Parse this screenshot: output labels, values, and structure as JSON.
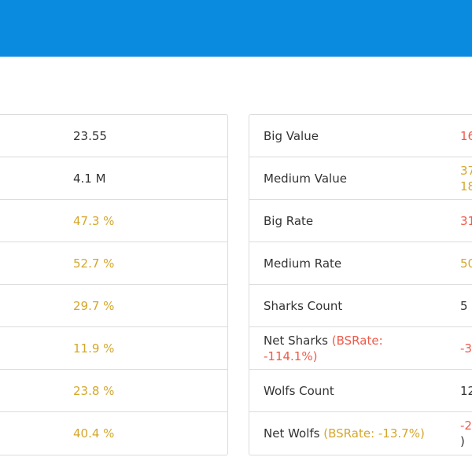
{
  "colors": {
    "topbar": "#0a8be0",
    "gold": "#d4a72c",
    "red": "#ef5a4a",
    "text": "#333333",
    "border": "#dcdcdc"
  },
  "left_table": {
    "rows": [
      {
        "value": "23.55"
      },
      {
        "value": "4.1 M"
      },
      {
        "value": "47.3 %"
      },
      {
        "value": "52.7 %"
      },
      {
        "value": "29.7 %"
      },
      {
        "value": "11.9 %"
      },
      {
        "value": "23.8 %"
      },
      {
        "value": "40.4 %"
      }
    ]
  },
  "right_table": {
    "rows": [
      {
        "label": "Big Value",
        "value": "16"
      },
      {
        "label": "Medium Value",
        "value_line1": "37",
        "value_line2": "18"
      },
      {
        "label": "Big Rate",
        "value": "31"
      },
      {
        "label": "Medium Rate",
        "value": "50"
      },
      {
        "label": "Sharks Count",
        "value": "5"
      },
      {
        "label": "Net Sharks",
        "label_note_line1": "(BSRate:",
        "label_note_line2": "-114.1%)",
        "value": "-3"
      },
      {
        "label": "Wolfs Count",
        "value": "12"
      },
      {
        "label": "Net Wolfs",
        "label_note": "(BSRate: -13.7%)",
        "value_line1": "-2",
        "value_line2": ")"
      }
    ]
  }
}
